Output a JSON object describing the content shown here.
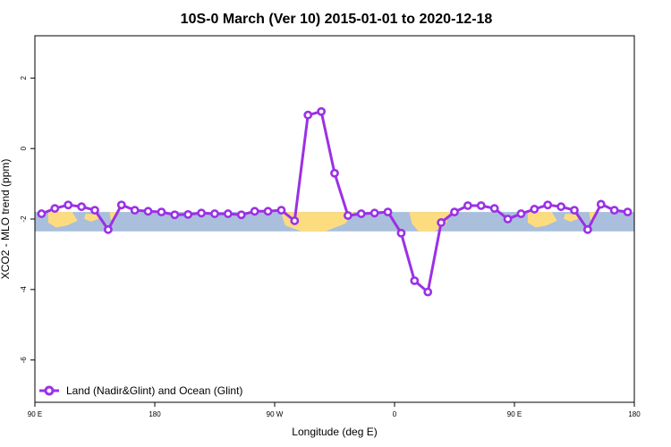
{
  "chart_data": {
    "type": "line",
    "title": "10S-0 March (Ver 10)   2015-01-01 to 2020-12-18",
    "xlabel": "Longitude (deg E)",
    "ylabel": "XCO2 - MLO trend (ppm)",
    "xlim": [
      -90,
      360
    ],
    "ylim": [
      -7.2,
      3.2
    ],
    "xticks": [
      {
        "value": -90,
        "label": "90 E"
      },
      {
        "value": 0,
        "label": "180"
      },
      {
        "value": 90,
        "label": "90 W"
      },
      {
        "value": 180,
        "label": "0"
      },
      {
        "value": 270,
        "label": "90 E"
      },
      {
        "value": 360,
        "label": "180"
      }
    ],
    "yticks": [
      {
        "value": 2,
        "label": "2"
      },
      {
        "value": 0,
        "label": "0"
      },
      {
        "value": -2,
        "label": "-2"
      },
      {
        "value": -4,
        "label": "-4"
      },
      {
        "value": -6,
        "label": "-6"
      }
    ],
    "band": {
      "ymin": -2.35,
      "ymax": -1.8,
      "ocean_color": "#a9bfdb",
      "land_color": "#fddc80"
    },
    "series": [
      {
        "name": "Land (Nadir&Glint) and Ocean (Glint)",
        "color": "#9b30e6",
        "x": [
          -85,
          -75,
          -65,
          -55,
          -45,
          -35,
          -25,
          -15,
          -5,
          5,
          15,
          25,
          35,
          45,
          55,
          65,
          75,
          85,
          95,
          105,
          115,
          125,
          135,
          145,
          155,
          165,
          175,
          185,
          195,
          205,
          215,
          225,
          235,
          245,
          255,
          265,
          275,
          285,
          295,
          305,
          315,
          325,
          335,
          345,
          355
        ],
        "y": [
          -1.85,
          -1.7,
          -1.6,
          -1.65,
          -1.75,
          -2.3,
          -1.6,
          -1.75,
          -1.78,
          -1.8,
          -1.88,
          -1.87,
          -1.83,
          -1.85,
          -1.85,
          -1.88,
          -1.78,
          -1.78,
          -1.75,
          -2.05,
          0.95,
          1.05,
          -0.7,
          -1.9,
          -1.85,
          -1.83,
          -1.8,
          -2.4,
          -3.75,
          -4.07,
          -2.1,
          -1.8,
          -1.62,
          -1.62,
          -1.7,
          -2.0,
          -1.85,
          -1.72,
          -1.6,
          -1.65,
          -1.75,
          -2.3,
          -1.58,
          -1.75,
          -1.8
        ]
      }
    ],
    "legend": {
      "placement": "bottom-left"
    }
  }
}
